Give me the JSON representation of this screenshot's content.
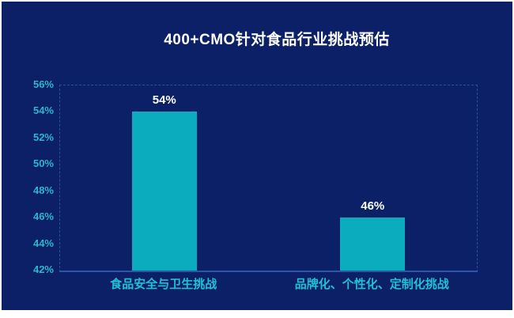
{
  "chart_data": {
    "type": "bar",
    "title": "400+CMO针对食品行业挑战预估",
    "categories": [
      "食品安全与卫生挑战",
      "品牌化、个性化、定制化挑战"
    ],
    "values": [
      54,
      46
    ],
    "value_labels": [
      "54%",
      "46%"
    ],
    "xlabel": "",
    "ylabel": "",
    "ylim": [
      42,
      56
    ],
    "ytick_step": 2,
    "ytick_labels": [
      "56%",
      "54%",
      "52%",
      "50%",
      "48%",
      "46%",
      "44%",
      "42%"
    ],
    "grid": false,
    "legend_position": "none",
    "bar_orientation": "vertical"
  },
  "colors": {
    "background": "#0b2067",
    "bar": "#0aacbe",
    "tick_label": "#2db6cc",
    "category_label": "#20c0d6",
    "value_label": "#ffffff",
    "title": "#ffffff",
    "plot_border_dashed": "#2d4f9b",
    "baseline": "#2e55a6",
    "page_margin": "#ffffff"
  }
}
